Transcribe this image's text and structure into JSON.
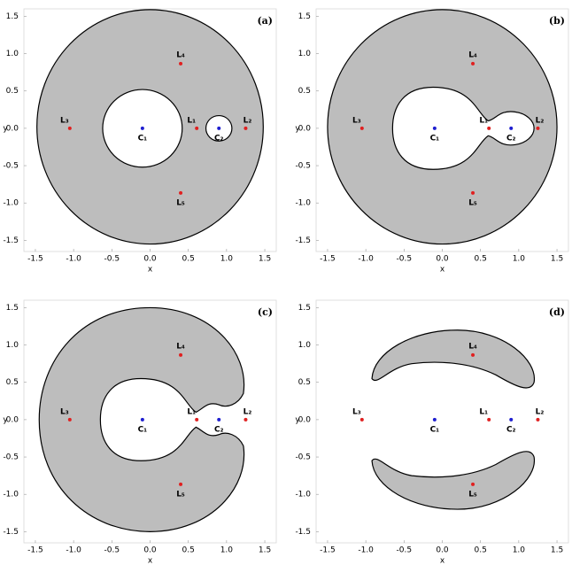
{
  "chart_data": [
    {
      "type": "scatter",
      "panel_label": "(a)",
      "xlabel": "x",
      "ylabel": "y",
      "xlim": [
        -1.65,
        1.65
      ],
      "ylim": [
        -1.65,
        1.6
      ],
      "xticks": [
        -1.5,
        {
          "value": -1,
          "label": "-1.0"
        },
        -0.5,
        {
          "value": 0,
          "label": "0.0"
        },
        0.5,
        {
          "value": 1,
          "label": "1.0"
        },
        1.5
      ],
      "yticks": [
        -1.5,
        {
          "value": -1,
          "label": "-1.0"
        },
        -0.5,
        {
          "value": 0,
          "label": "0.0"
        },
        0.5,
        {
          "value": 1,
          "label": "1.0"
        },
        1.5
      ],
      "labels": [
        "C₁",
        "C₂",
        "L₁",
        "L₂",
        "L₃",
        "L₄",
        "L₅"
      ],
      "x": [
        -0.1,
        0.9,
        0.61,
        1.25,
        -1.05,
        0.4,
        0.4
      ],
      "y": [
        0,
        0,
        0,
        0,
        0,
        0.866,
        -0.866
      ],
      "colors": [
        "#1f1fd0",
        "#1f1fd0",
        "#e02020",
        "#e02020",
        "#e02020",
        "#e02020",
        "#e02020"
      ]
    },
    {
      "type": "scatter",
      "panel_label": "(b)",
      "xlabel": "x",
      "ylabel": "y",
      "xlim": [
        -1.65,
        1.65
      ],
      "ylim": [
        -1.65,
        1.6
      ],
      "xticks": [
        -1.5,
        {
          "value": -1,
          "label": "-1.0"
        },
        -0.5,
        {
          "value": 0,
          "label": "0.0"
        },
        0.5,
        {
          "value": 1,
          "label": "1.0"
        },
        1.5
      ],
      "yticks": [
        -1.5,
        {
          "value": -1,
          "label": "-1.0"
        },
        -0.5,
        {
          "value": 0,
          "label": "0.0"
        },
        0.5,
        {
          "value": 1,
          "label": "1.0"
        },
        1.5
      ],
      "labels": [
        "C₁",
        "C₂",
        "L₁",
        "L₂",
        "L₃",
        "L₄",
        "L₅"
      ],
      "x": [
        -0.1,
        0.9,
        0.61,
        1.25,
        -1.05,
        0.4,
        0.4
      ],
      "y": [
        0,
        0,
        0,
        0,
        0,
        0.866,
        -0.866
      ],
      "colors": [
        "#1f1fd0",
        "#1f1fd0",
        "#e02020",
        "#e02020",
        "#e02020",
        "#e02020",
        "#e02020"
      ]
    },
    {
      "type": "scatter",
      "panel_label": "(c)",
      "xlabel": "x",
      "ylabel": "y",
      "xlim": [
        -1.65,
        1.65
      ],
      "ylim": [
        -1.65,
        1.6
      ],
      "xticks": [
        -1.5,
        {
          "value": -1,
          "label": "-1.0"
        },
        -0.5,
        {
          "value": 0,
          "label": "0.0"
        },
        0.5,
        {
          "value": 1,
          "label": "1.0"
        },
        1.5
      ],
      "yticks": [
        -1.5,
        {
          "value": -1,
          "label": "-1.0"
        },
        -0.5,
        {
          "value": 0,
          "label": "0.0"
        },
        0.5,
        {
          "value": 1,
          "label": "1.0"
        },
        1.5
      ],
      "labels": [
        "C₁",
        "C₂",
        "L₁",
        "L₂",
        "L₃",
        "L₄",
        "L₅"
      ],
      "x": [
        -0.1,
        0.9,
        0.61,
        1.25,
        -1.05,
        0.4,
        0.4
      ],
      "y": [
        0,
        0,
        0,
        0,
        0,
        0.866,
        -0.866
      ],
      "colors": [
        "#1f1fd0",
        "#1f1fd0",
        "#e02020",
        "#e02020",
        "#e02020",
        "#e02020",
        "#e02020"
      ]
    },
    {
      "type": "scatter",
      "panel_label": "(d)",
      "xlabel": "x",
      "ylabel": "y",
      "xlim": [
        -1.65,
        1.65
      ],
      "ylim": [
        -1.65,
        1.6
      ],
      "xticks": [
        -1.5,
        {
          "value": -1,
          "label": "-1.0"
        },
        -0.5,
        {
          "value": 0,
          "label": "0.0"
        },
        0.5,
        {
          "value": 1,
          "label": "1.0"
        },
        1.5
      ],
      "yticks": [
        -1.5,
        {
          "value": -1,
          "label": "-1.0"
        },
        -0.5,
        {
          "value": 0,
          "label": "0.0"
        },
        0.5,
        {
          "value": 1,
          "label": "1.0"
        },
        1.5
      ],
      "labels": [
        "C₁",
        "C₂",
        "L₁",
        "L₂",
        "L₃",
        "L₄",
        "L₅"
      ],
      "x": [
        -0.1,
        0.9,
        0.61,
        1.25,
        -1.05,
        0.4,
        0.4
      ],
      "y": [
        0,
        0,
        0,
        0,
        0,
        0.866,
        -0.866
      ],
      "colors": [
        "#1f1fd0",
        "#1f1fd0",
        "#e02020",
        "#e02020",
        "#e02020",
        "#e02020",
        "#e02020"
      ]
    }
  ]
}
